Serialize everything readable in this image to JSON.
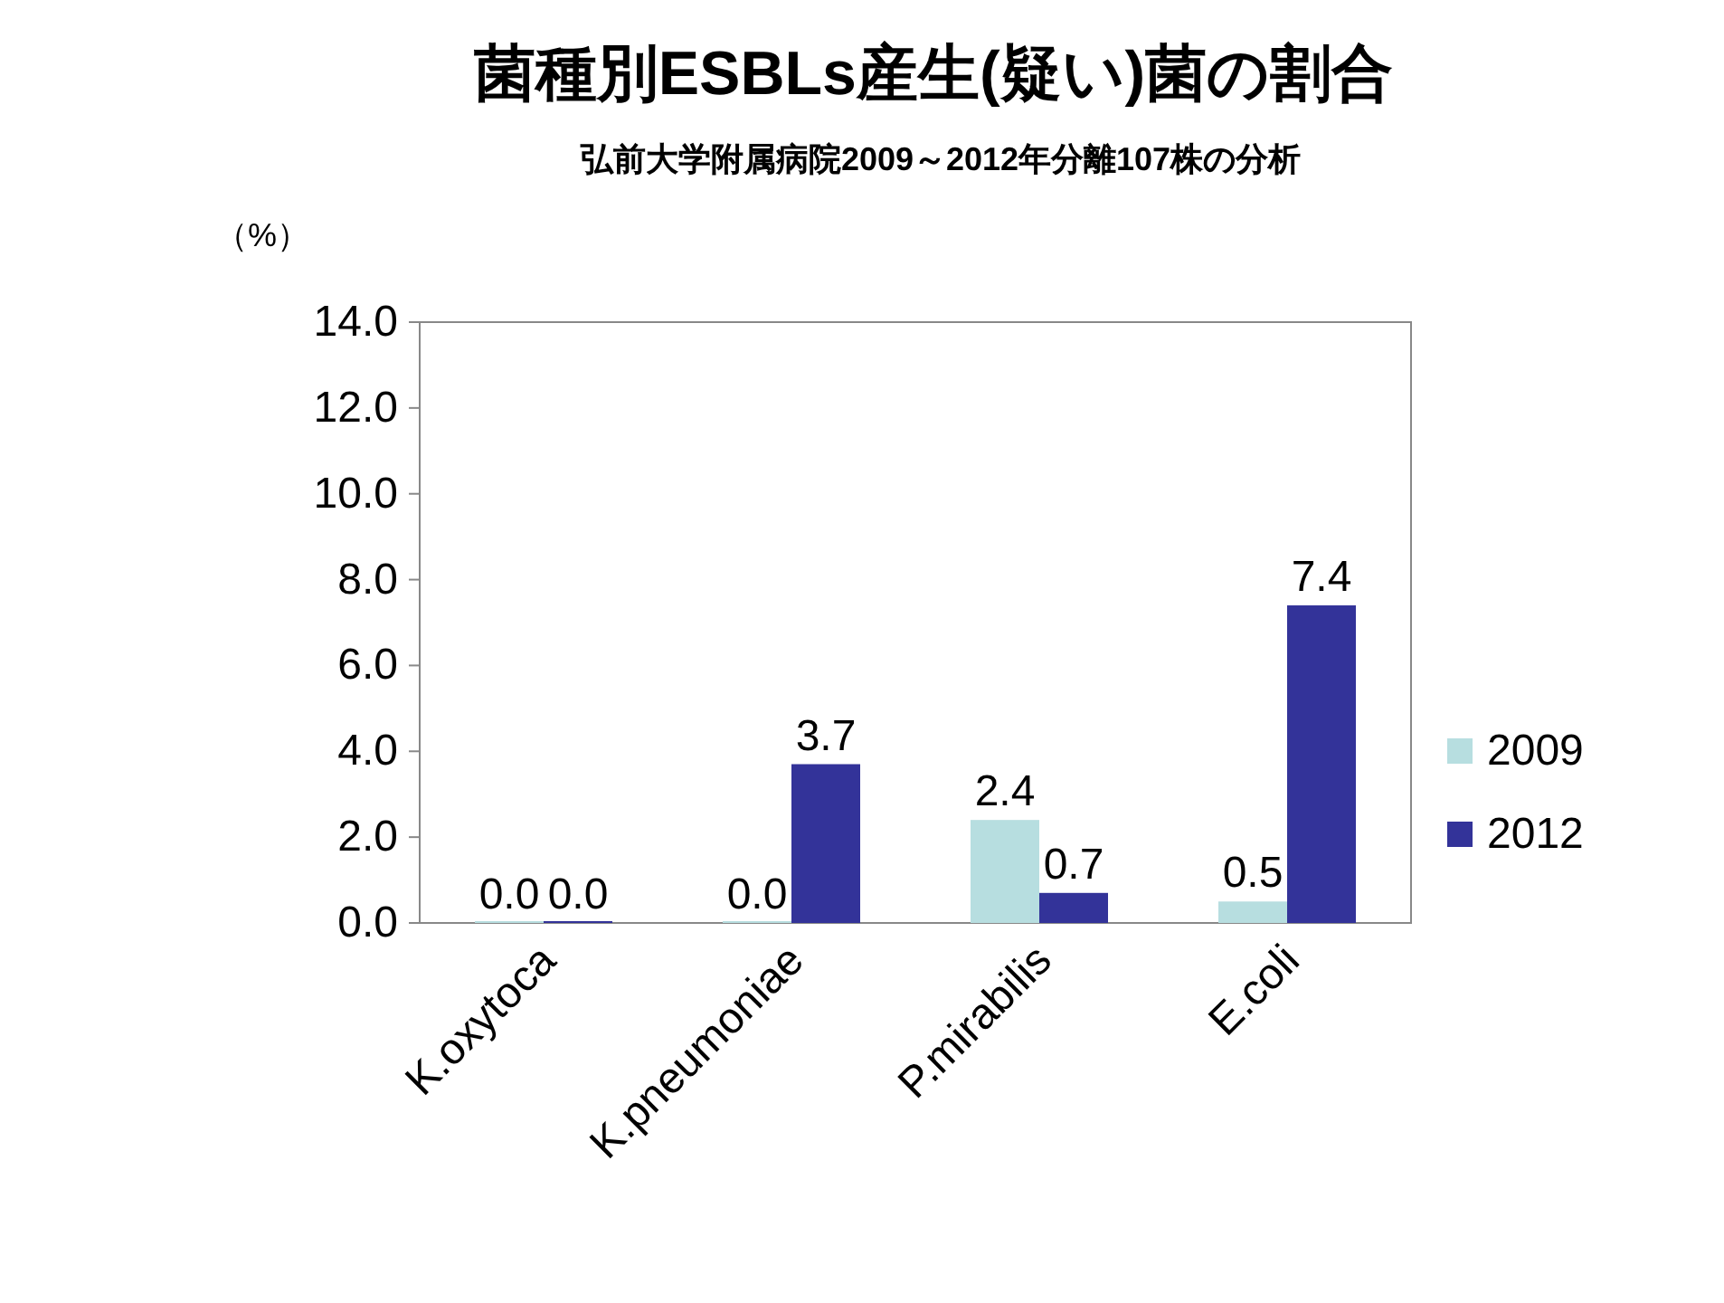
{
  "chart_data": {
    "type": "bar",
    "title": "菌種別ESBLs産生(疑い)菌の割合",
    "subtitle": "弘前大学附属病院2009～2012年分離107株の分析",
    "ylabel": "（%）",
    "categories": [
      "K.oxytoca",
      "K.pneumoniae",
      "P.mirabilis",
      "E.coli"
    ],
    "series": [
      {
        "name": "2009",
        "color": "#b7dee0",
        "values": [
          0.0,
          0.0,
          2.4,
          0.5
        ],
        "value_labels": [
          "0.0",
          "0.0",
          "2.4",
          "0.5"
        ]
      },
      {
        "name": "2012",
        "color": "#333399",
        "values": [
          0.0,
          3.7,
          0.7,
          7.4
        ],
        "value_labels": [
          "0.0",
          "3.7",
          "0.7",
          "7.4"
        ]
      }
    ],
    "ylim": [
      0,
      14
    ],
    "yticks": [
      {
        "value": 0,
        "label": "0.0"
      },
      {
        "value": 2,
        "label": "2.0"
      },
      {
        "value": 4,
        "label": "4.0"
      },
      {
        "value": 6,
        "label": "6.0"
      },
      {
        "value": 8,
        "label": "8.0"
      },
      {
        "value": 10,
        "label": "10.0"
      },
      {
        "value": 12,
        "label": "12.0"
      },
      {
        "value": 14,
        "label": "14.0"
      }
    ],
    "grid": false,
    "legend": "right"
  }
}
